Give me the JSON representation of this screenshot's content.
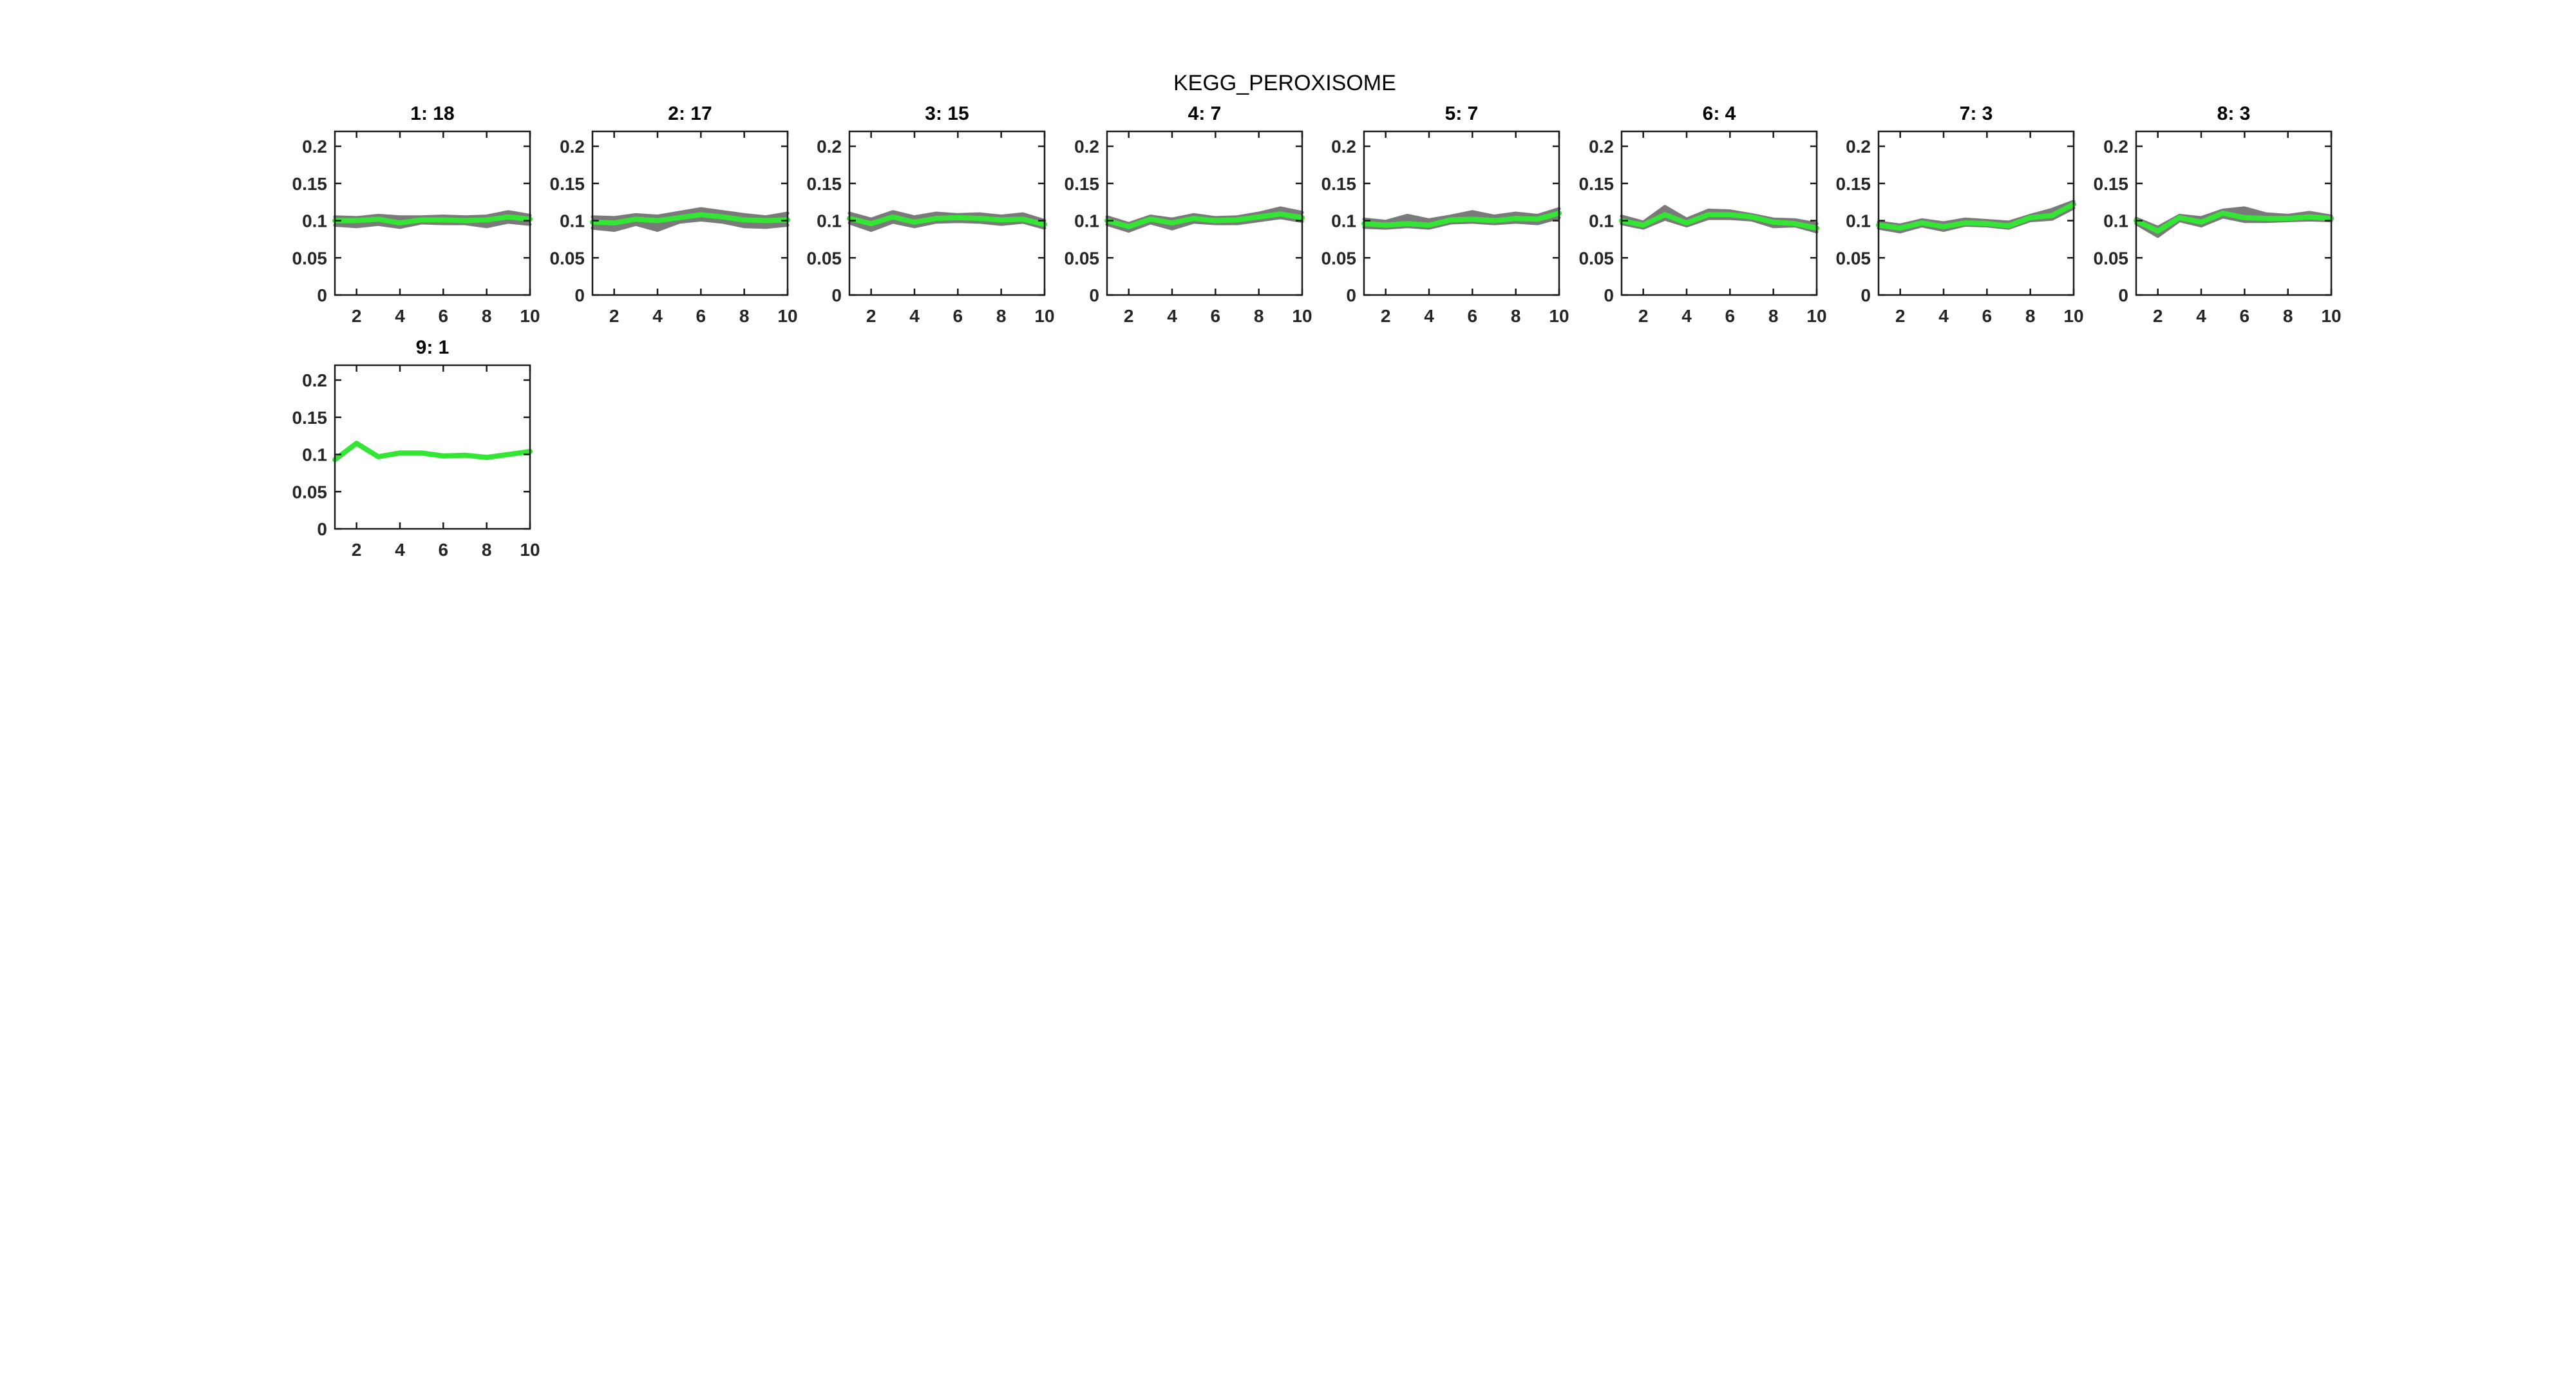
{
  "chart_title": "KEGG_PEROXISOME",
  "colors": {
    "background": "#ffffff",
    "mean_line": "#33E633",
    "member_band": "#7A7A7A",
    "axis": "#1A1A1A",
    "tick_label": "#262626",
    "title_text": "#000000"
  },
  "chart_data": {
    "type": "line",
    "title": "KEGG_PEROXISOME",
    "grid": false,
    "legend": "none",
    "x": [
      1,
      2,
      3,
      4,
      5,
      6,
      7,
      8,
      9,
      10
    ],
    "xlim": [
      1,
      10
    ],
    "ylim": [
      0,
      0.22
    ],
    "xticks": [
      2,
      4,
      6,
      8,
      10
    ],
    "xtick_labels": [
      "2",
      "4",
      "6",
      "8",
      "10"
    ],
    "yticks": [
      0,
      0.05,
      0.1,
      0.15,
      0.2
    ],
    "ytick_labels": [
      "0",
      "0.05",
      "0.1",
      "0.15",
      "0.2"
    ],
    "subplots": [
      {
        "title": "1: 18",
        "cluster": 1,
        "n_members": 18,
        "mean": [
          0.1,
          0.1,
          0.102,
          0.097,
          0.101,
          0.101,
          0.1,
          0.101,
          0.105,
          0.102
        ],
        "band_upper": [
          0.105,
          0.104,
          0.107,
          0.105,
          0.105,
          0.106,
          0.105,
          0.106,
          0.112,
          0.107
        ],
        "band_lower": [
          0.094,
          0.092,
          0.095,
          0.091,
          0.097,
          0.096,
          0.096,
          0.092,
          0.098,
          0.095
        ]
      },
      {
        "title": "2: 17",
        "cluster": 2,
        "n_members": 17,
        "mean": [
          0.098,
          0.097,
          0.102,
          0.1,
          0.104,
          0.108,
          0.105,
          0.101,
          0.1,
          0.101
        ],
        "band_upper": [
          0.105,
          0.104,
          0.108,
          0.106,
          0.111,
          0.116,
          0.112,
          0.108,
          0.105,
          0.11
        ],
        "band_lower": [
          0.09,
          0.087,
          0.095,
          0.087,
          0.098,
          0.101,
          0.098,
          0.092,
          0.091,
          0.094
        ]
      },
      {
        "title": "3: 15",
        "cluster": 3,
        "n_members": 15,
        "mean": [
          0.103,
          0.096,
          0.105,
          0.098,
          0.103,
          0.104,
          0.103,
          0.101,
          0.102,
          0.095
        ],
        "band_upper": [
          0.11,
          0.102,
          0.112,
          0.105,
          0.11,
          0.108,
          0.109,
          0.106,
          0.109,
          0.1
        ],
        "band_lower": [
          0.097,
          0.087,
          0.098,
          0.092,
          0.098,
          0.099,
          0.098,
          0.095,
          0.098,
          0.09
        ]
      },
      {
        "title": "4: 7",
        "cluster": 4,
        "n_members": 7,
        "mean": [
          0.1,
          0.092,
          0.102,
          0.097,
          0.103,
          0.1,
          0.101,
          0.105,
          0.109,
          0.104
        ],
        "band_upper": [
          0.105,
          0.096,
          0.106,
          0.102,
          0.108,
          0.104,
          0.105,
          0.11,
          0.117,
          0.111
        ],
        "band_lower": [
          0.095,
          0.086,
          0.097,
          0.089,
          0.098,
          0.096,
          0.096,
          0.1,
          0.104,
          0.099
        ]
      },
      {
        "title": "5: 7",
        "cluster": 5,
        "n_members": 7,
        "mean": [
          0.096,
          0.094,
          0.096,
          0.094,
          0.101,
          0.102,
          0.1,
          0.103,
          0.102,
          0.11
        ],
        "band_upper": [
          0.102,
          0.099,
          0.107,
          0.101,
          0.106,
          0.112,
          0.106,
          0.11,
          0.107,
          0.116
        ],
        "band_lower": [
          0.091,
          0.09,
          0.092,
          0.09,
          0.097,
          0.098,
          0.096,
          0.098,
          0.096,
          0.104
        ]
      },
      {
        "title": "6: 4",
        "cluster": 6,
        "n_members": 4,
        "mean": [
          0.1,
          0.094,
          0.108,
          0.097,
          0.108,
          0.108,
          0.105,
          0.098,
          0.096,
          0.09
        ],
        "band_upper": [
          0.106,
          0.098,
          0.119,
          0.102,
          0.114,
          0.113,
          0.108,
          0.102,
          0.101,
          0.096
        ],
        "band_lower": [
          0.096,
          0.09,
          0.102,
          0.093,
          0.103,
          0.103,
          0.101,
          0.092,
          0.093,
          0.085
        ]
      },
      {
        "title": "7: 3",
        "cluster": 7,
        "n_members": 3,
        "mean": [
          0.094,
          0.09,
          0.097,
          0.092,
          0.097,
          0.096,
          0.093,
          0.104,
          0.107,
          0.122
        ],
        "band_upper": [
          0.098,
          0.094,
          0.101,
          0.097,
          0.102,
          0.1,
          0.098,
          0.107,
          0.115,
          0.126
        ],
        "band_lower": [
          0.09,
          0.085,
          0.093,
          0.087,
          0.094,
          0.093,
          0.09,
          0.1,
          0.102,
          0.117
        ]
      },
      {
        "title": "8: 3",
        "cluster": 8,
        "n_members": 3,
        "mean": [
          0.1,
          0.086,
          0.104,
          0.098,
          0.11,
          0.104,
          0.103,
          0.103,
          0.105,
          0.103
        ],
        "band_upper": [
          0.103,
          0.091,
          0.107,
          0.104,
          0.114,
          0.117,
          0.109,
          0.107,
          0.111,
          0.106
        ],
        "band_lower": [
          0.096,
          0.079,
          0.1,
          0.093,
          0.105,
          0.099,
          0.099,
          0.1,
          0.101,
          0.1
        ]
      },
      {
        "title": "9: 1",
        "cluster": 9,
        "n_members": 1,
        "mean": [
          0.093,
          0.115,
          0.097,
          0.102,
          0.102,
          0.098,
          0.099,
          0.096,
          0.1,
          0.104
        ],
        "band_upper": null,
        "band_lower": null
      }
    ]
  }
}
